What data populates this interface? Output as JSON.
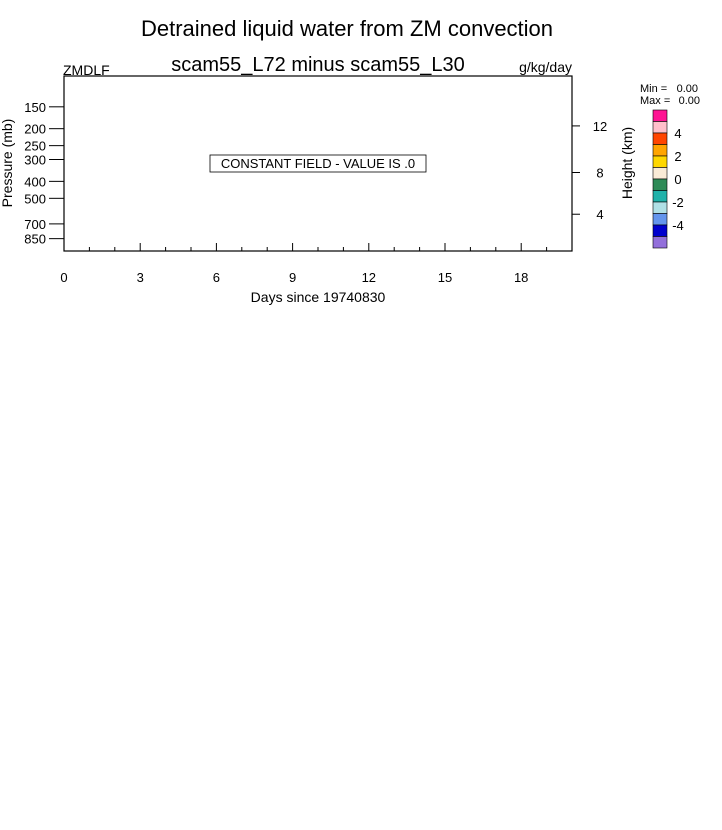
{
  "chart_data": {
    "type": "heatmap",
    "title": "Detrained liquid water from ZM convection",
    "subtitle": "scam55_L72 minus scam55_L30",
    "variable": "ZMDLF",
    "units": "g/kg/day",
    "xlabel": "Days since 19740830",
    "ylabel": "Pressure (mb)",
    "ylabel_right": "Height (km)",
    "xlim": [
      0,
      20
    ],
    "ylim": [
      1000,
      100
    ],
    "y_scale": "log",
    "x_ticks": [
      0,
      3,
      6,
      9,
      12,
      15,
      18
    ],
    "x_tick_labels": [
      "0",
      "3",
      "6",
      "9",
      "12",
      "15",
      "18"
    ],
    "y_ticks": [
      150,
      200,
      250,
      300,
      400,
      500,
      700,
      850
    ],
    "y_tick_labels": [
      "150",
      "200",
      "250",
      "300",
      "400",
      "500",
      "700",
      "850"
    ],
    "y_right_ticks": [
      4,
      8,
      12
    ],
    "y_right_tick_labels": [
      "4",
      "8",
      "12"
    ],
    "message": "CONSTANT FIELD - VALUE IS .0",
    "min_label": "Min =",
    "min_value": "0.00",
    "max_label": "Max =",
    "max_value": "0.00",
    "colorbar": {
      "colors": [
        "#ff1493",
        "#ffc0cb",
        "#ff4500",
        "#ffa500",
        "#ffd700",
        "#faebd7",
        "#2e8b57",
        "#20b2aa",
        "#b0e0e6",
        "#6495ed",
        "#0000cd",
        "#9370db"
      ],
      "labels": [
        "4",
        "2",
        "0",
        "-2",
        "-4"
      ]
    },
    "grid": false,
    "legend": "right"
  }
}
